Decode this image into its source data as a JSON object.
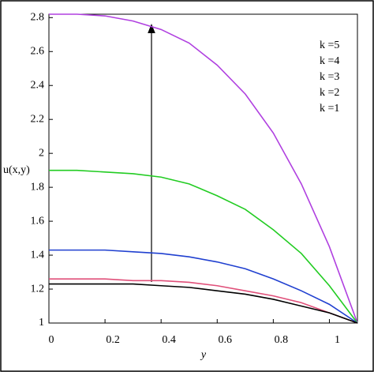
{
  "chart_data": {
    "type": "line",
    "x_label": "y",
    "y_label": "u(x,y)",
    "x": [
      0,
      0.1,
      0.2,
      0.3,
      0.4,
      0.5,
      0.6,
      0.7,
      0.8,
      0.9,
      1.0,
      1.1
    ],
    "series": [
      {
        "name": "k =5",
        "color": "#b040e0",
        "values": [
          2.82,
          2.82,
          2.81,
          2.78,
          2.73,
          2.65,
          2.52,
          2.35,
          2.12,
          1.82,
          1.45,
          1.0
        ]
      },
      {
        "name": "k =4",
        "color": "#22cc22",
        "values": [
          1.9,
          1.9,
          1.89,
          1.88,
          1.86,
          1.82,
          1.75,
          1.67,
          1.55,
          1.41,
          1.22,
          1.0
        ]
      },
      {
        "name": "k =3",
        "color": "#2040d0",
        "values": [
          1.43,
          1.43,
          1.43,
          1.42,
          1.41,
          1.39,
          1.36,
          1.32,
          1.26,
          1.19,
          1.11,
          1.0
        ]
      },
      {
        "name": "k =2",
        "color": "#e0507a",
        "values": [
          1.26,
          1.26,
          1.26,
          1.25,
          1.25,
          1.24,
          1.22,
          1.19,
          1.16,
          1.12,
          1.06,
          1.0
        ]
      },
      {
        "name": "k =1",
        "color": "#000000",
        "values": [
          1.23,
          1.23,
          1.23,
          1.23,
          1.22,
          1.21,
          1.19,
          1.17,
          1.14,
          1.1,
          1.06,
          1.0
        ]
      }
    ],
    "xlim": [
      0,
      1.1
    ],
    "ylim": [
      1,
      2.82
    ],
    "xticks": [
      0,
      0.2,
      0.4,
      0.6,
      0.8,
      1
    ],
    "yticks": [
      1,
      1.2,
      1.4,
      1.6,
      1.8,
      2,
      2.2,
      2.4,
      2.6,
      2.8
    ],
    "grid": false,
    "legend": "upper right"
  }
}
